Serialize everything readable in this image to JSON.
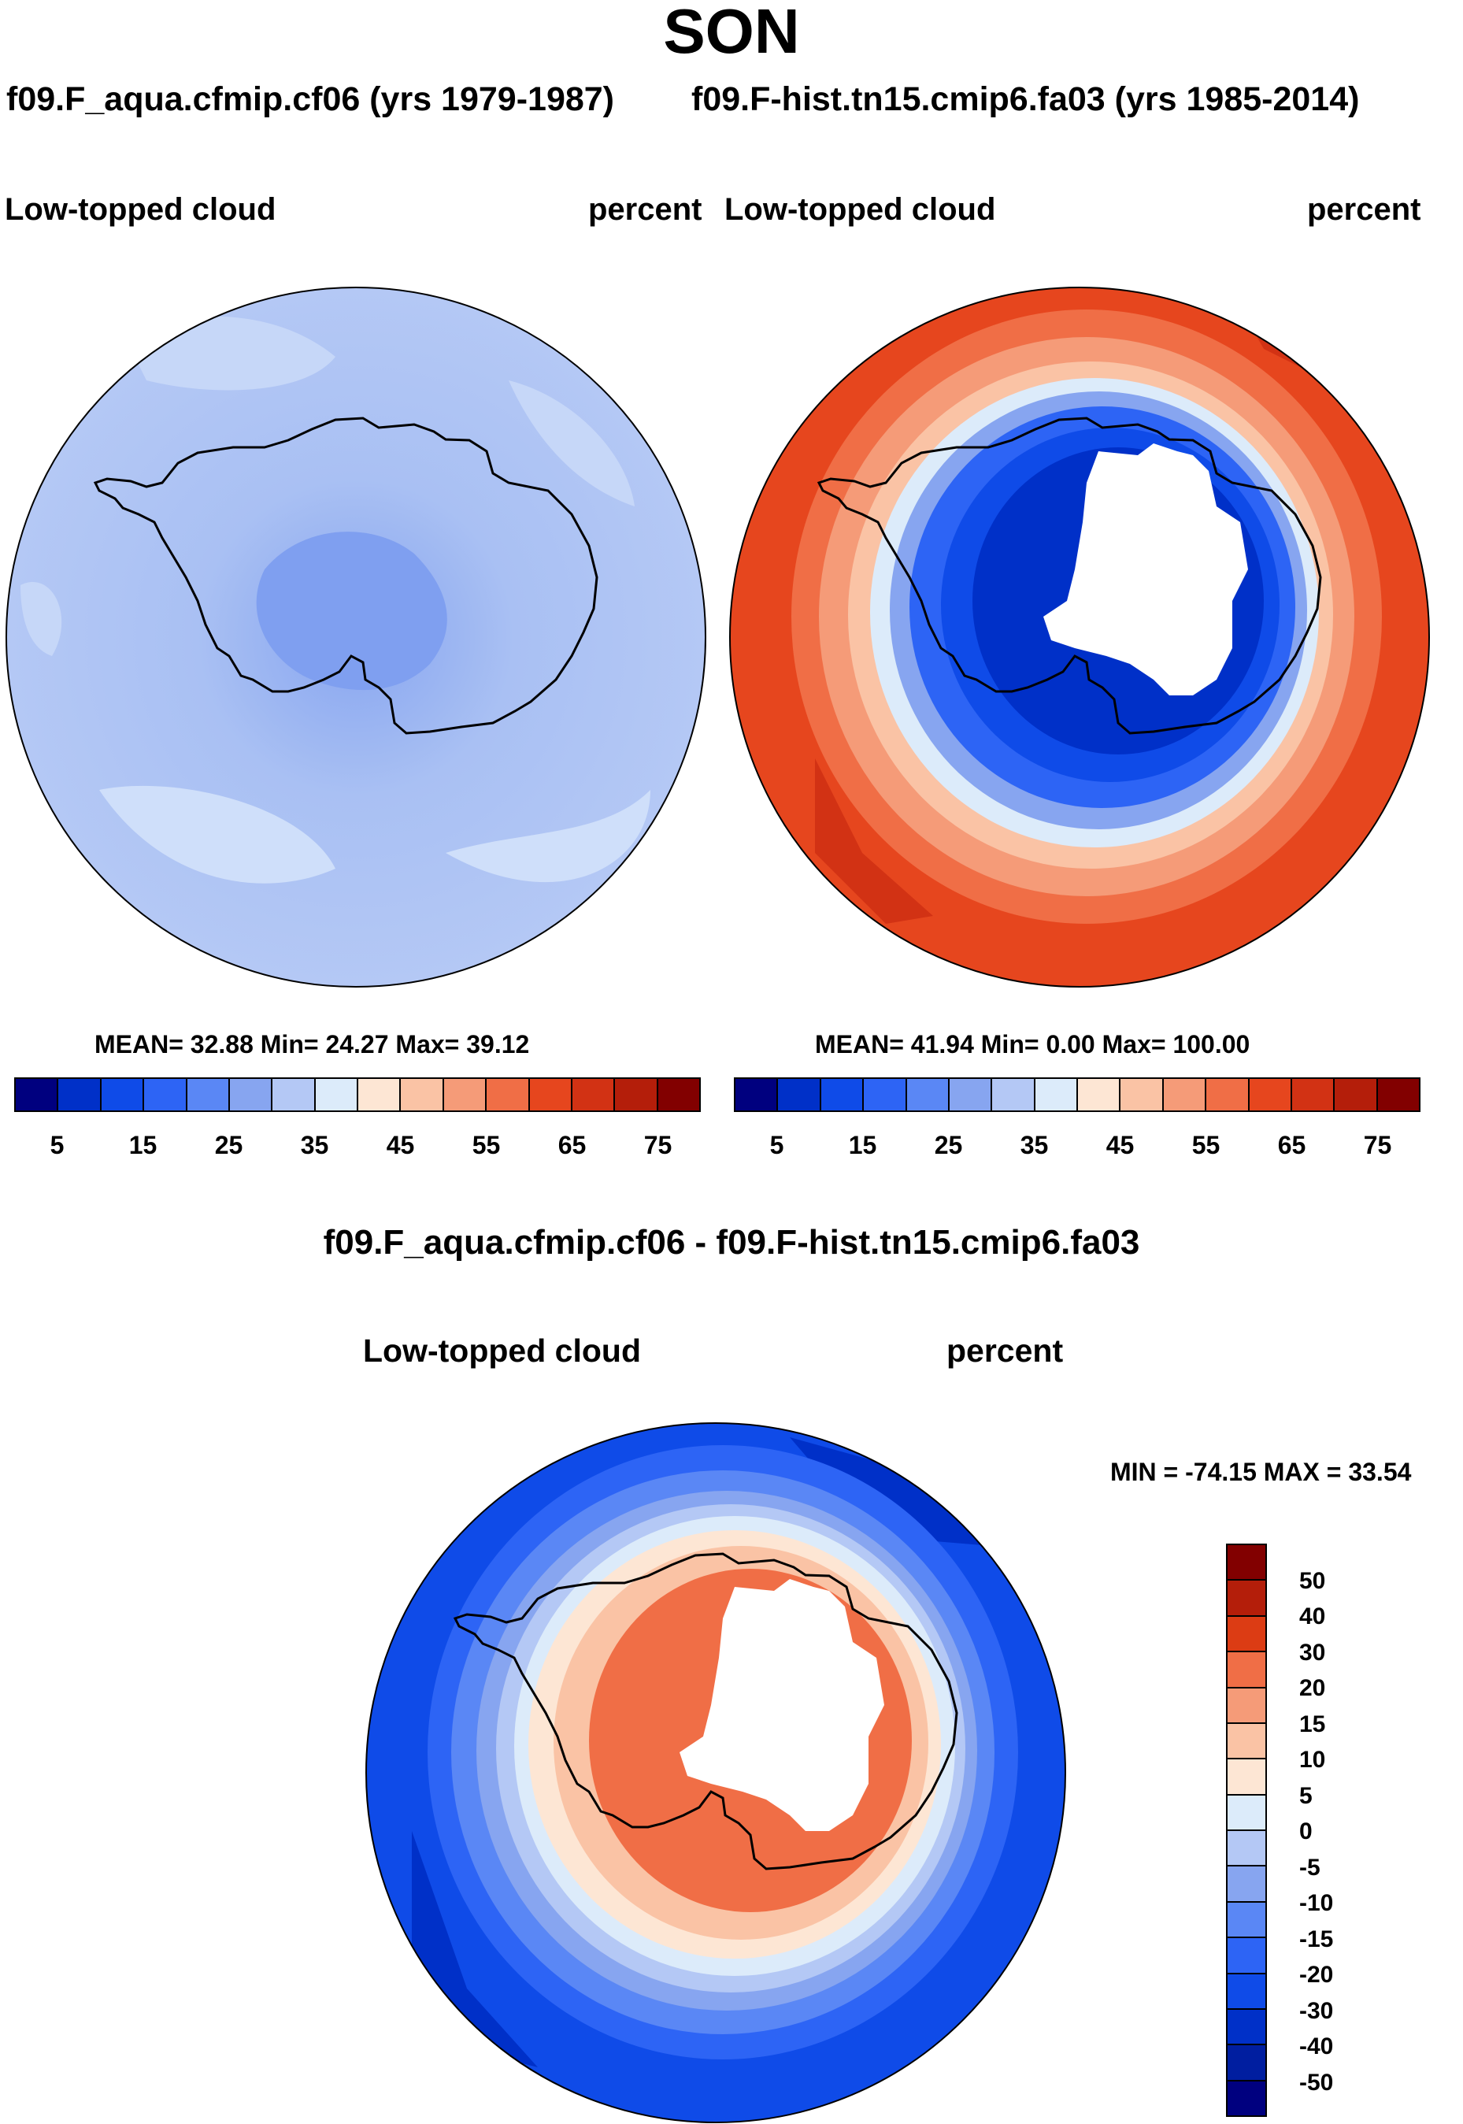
{
  "title": "SON",
  "left_panel": {
    "case": "f09.F_aqua.cfmip.cf06 (yrs 1979-1987)",
    "variable": "Low-topped cloud",
    "units": "percent",
    "stats": "MEAN=  32.88  Min=  24.27  Max=  39.12"
  },
  "right_panel": {
    "case": "f09.F-hist.tn15.cmip6.fa03 (yrs 1985-2014)",
    "variable": "Low-topped cloud",
    "units": "percent",
    "stats": "MEAN=  41.94  Min=   0.00  Max= 100.00"
  },
  "abs_colorbar": {
    "ticks": [
      "5",
      "15",
      "25",
      "35",
      "45",
      "55",
      "65",
      "75"
    ],
    "colors": [
      "#00007f",
      "#0030c8",
      "#0f4be8",
      "#2d64f5",
      "#5a87f5",
      "#87a5f0",
      "#b4c8f5",
      "#dcebfa",
      "#fde6d4",
      "#fac3a5",
      "#f59b78",
      "#f06e46",
      "#e6461e",
      "#d23214",
      "#b41e0a",
      "#820000"
    ]
  },
  "diff_panel": {
    "title": "f09.F_aqua.cfmip.cf06 - f09.F-hist.tn15.cmip6.fa03",
    "variable": "Low-topped cloud",
    "units": "percent",
    "minmax": "MIN = -74.15 MAX =  33.54",
    "ticks": [
      "50",
      "40",
      "30",
      "20",
      "15",
      "10",
      "5",
      "0",
      "-5",
      "-10",
      "-15",
      "-20",
      "-30",
      "-40",
      "-50"
    ],
    "colors": [
      "#820000",
      "#b41e0a",
      "#dc3c14",
      "#f06e46",
      "#f59b78",
      "#fac3a5",
      "#fde6d4",
      "#dcebfa",
      "#b4c8f5",
      "#87a5f0",
      "#5a87f5",
      "#2d64f5",
      "#0f4be8",
      "#0030c8",
      "#001ea0",
      "#00007f"
    ]
  },
  "chart_data": [
    {
      "type": "heatmap",
      "projection": "south polar stereographic",
      "region": "Antarctica / Southern Ocean",
      "variable": "Low-topped cloud",
      "units": "percent",
      "mean": 32.88,
      "min": 24.27,
      "max": 39.12,
      "colorbar_levels": [
        5,
        10,
        15,
        20,
        25,
        30,
        35,
        40,
        45,
        50,
        55,
        60,
        65,
        70,
        75
      ]
    },
    {
      "type": "heatmap",
      "projection": "south polar stereographic",
      "region": "Antarctica / Southern Ocean",
      "variable": "Low-topped cloud",
      "units": "percent",
      "mean": 41.94,
      "min": 0.0,
      "max": 100.0,
      "colorbar_levels": [
        5,
        10,
        15,
        20,
        25,
        30,
        35,
        40,
        45,
        50,
        55,
        60,
        65,
        70,
        75
      ]
    },
    {
      "type": "heatmap",
      "projection": "south polar stereographic",
      "region": "Antarctica / Southern Ocean",
      "variable": "Low-topped cloud difference",
      "units": "percent",
      "min": -74.15,
      "max": 33.54,
      "colorbar_levels": [
        -50,
        -40,
        -30,
        -20,
        -15,
        -10,
        -5,
        0,
        5,
        10,
        15,
        20,
        30,
        40,
        50
      ]
    }
  ]
}
